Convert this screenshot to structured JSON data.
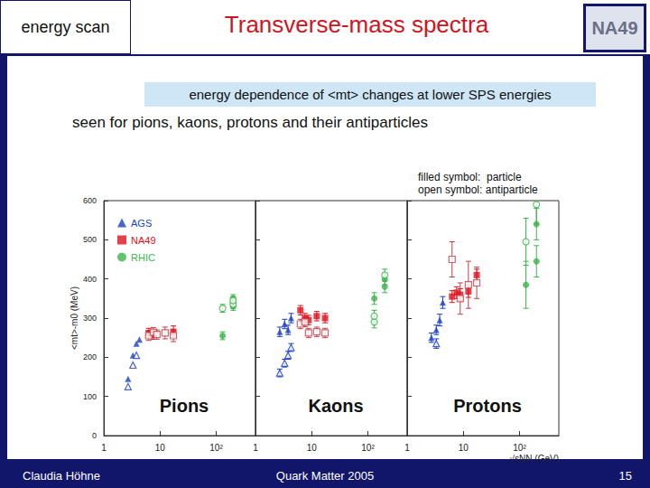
{
  "slide": {
    "header_left": "energy scan",
    "title": "Transverse-mass spectra",
    "logo": "NA49",
    "highlight": "energy dependence of <mt> changes at lower SPS energies",
    "subtitle": "seen for pions, kaons, protons and their antiparticles",
    "notes": [
      "filled symbol:  particle",
      "open symbol: antiparticle"
    ],
    "footer": {
      "author": "Claudia Höhne",
      "event": "Quark Matter 2005",
      "page": 15
    }
  },
  "chart_data": [
    {
      "type": "scatter",
      "title": "Pions",
      "ylabel": "<mt>-m0 (MeV)",
      "log": "x",
      "xlim": [
        1,
        500
      ],
      "xticks": [
        1,
        10,
        {
          "value": 100,
          "label": "10²"
        }
      ],
      "ylim": [
        0,
        600
      ],
      "yticks": [
        0,
        100,
        200,
        300,
        400,
        500,
        600
      ],
      "grid": false,
      "legend": "upper left",
      "series": [
        {
          "name": "AGS",
          "color": "#1a3fc4",
          "marker": "triangle",
          "x": [
            2.7,
            3.3,
            3.8,
            4.3
          ],
          "values": [
            145,
            205,
            235,
            245
          ]
        },
        {
          "name": "AGS",
          "color": "#1a3fc4",
          "marker": "open-triangle",
          "x": [
            2.7,
            3.3,
            3.8
          ],
          "values": [
            125,
            180,
            205
          ]
        },
        {
          "name": "NA49",
          "color": "#e0101a",
          "marker": "square",
          "x": [
            6.3,
            7.6,
            17.3
          ],
          "values": [
            262,
            258,
            265
          ],
          "errors": [
            12,
            12,
            15
          ]
        },
        {
          "name": "NA49",
          "color": "#c0404a",
          "marker": "open-square",
          "x": [
            6.3,
            7.6,
            8.8,
            12.3,
            17.3
          ],
          "values": [
            255,
            264,
            258,
            262,
            255
          ],
          "errors": [
            12,
            12,
            12,
            15,
            15
          ]
        },
        {
          "name": "RHIC",
          "color": "#3cb44b",
          "marker": "circle",
          "x": [
            130,
            200,
            200,
            200
          ],
          "values": [
            255,
            330,
            340,
            350
          ],
          "errors": [
            10,
            10,
            10,
            10
          ]
        },
        {
          "name": "RHIC",
          "color": "#3cb44b",
          "marker": "open-circle",
          "x": [
            130,
            200,
            200
          ],
          "values": [
            325,
            335,
            345
          ],
          "errors": [
            10,
            10,
            10
          ]
        }
      ]
    },
    {
      "type": "scatter",
      "title": "Kaons",
      "log": "x",
      "tick_labels": "x",
      "xlim": [
        1,
        500
      ],
      "xticks": [
        1,
        10,
        {
          "value": 100,
          "label": "10²"
        }
      ],
      "ylim": [
        0,
        600
      ],
      "yticks": [
        0,
        100,
        200,
        300,
        400,
        500,
        600
      ],
      "grid": false,
      "series": [
        {
          "name": "AGS",
          "color": "#1a3fc4",
          "marker": "triangle",
          "x": [
            2.7,
            3.3,
            3.8,
            4.3
          ],
          "values": [
            265,
            285,
            270,
            300
          ],
          "errors": [
            12,
            12,
            12,
            12
          ]
        },
        {
          "name": "AGS",
          "color": "#1a3fc4",
          "marker": "open-triangle",
          "x": [
            2.7,
            3.3,
            3.8,
            4.3
          ],
          "values": [
            160,
            185,
            205,
            225
          ],
          "errors": [
            10,
            10,
            10,
            10
          ]
        },
        {
          "name": "NA49",
          "color": "#e0101a",
          "marker": "square",
          "x": [
            6.3,
            7.6,
            8.8,
            12.3,
            17.3
          ],
          "values": [
            320,
            300,
            295,
            305,
            300
          ],
          "errors": [
            12,
            12,
            12,
            12,
            12
          ]
        },
        {
          "name": "NA49",
          "color": "#c0404a",
          "marker": "open-square",
          "x": [
            6.3,
            7.6,
            8.8,
            12.3,
            17.3
          ],
          "values": [
            285,
            290,
            262,
            265,
            262
          ],
          "errors": [
            12,
            12,
            12,
            12,
            12
          ]
        },
        {
          "name": "RHIC",
          "color": "#3cb44b",
          "marker": "circle",
          "x": [
            130,
            200,
            200
          ],
          "values": [
            350,
            380,
            400
          ],
          "errors": [
            15,
            15,
            15
          ]
        },
        {
          "name": "RHIC",
          "color": "#3cb44b",
          "marker": "open-circle",
          "x": [
            130,
            130,
            200
          ],
          "values": [
            290,
            305,
            410
          ],
          "errors": [
            15,
            15,
            15
          ]
        }
      ]
    },
    {
      "type": "scatter",
      "title": "Protons",
      "xlabel": "√sNN (GeV)",
      "log": "x",
      "tick_labels": "x",
      "xlim": [
        1,
        500
      ],
      "xticks": [
        1,
        10,
        {
          "value": 100,
          "label": "10²"
        }
      ],
      "ylim": [
        0,
        600
      ],
      "yticks": [
        0,
        100,
        200,
        300,
        400,
        500,
        600
      ],
      "grid": false,
      "series": [
        {
          "name": "AGS",
          "color": "#1a3fc4",
          "marker": "triangle",
          "x": [
            2.7,
            3.3,
            3.8,
            4.3
          ],
          "values": [
            250,
            270,
            295,
            340
          ],
          "errors": [
            12,
            12,
            15,
            15
          ]
        },
        {
          "name": "AGS",
          "color": "#1a3fc4",
          "marker": "open-triangle",
          "x": [
            3.3
          ],
          "values": [
            235
          ],
          "errors": [
            12
          ]
        },
        {
          "name": "NA49",
          "color": "#e0101a",
          "marker": "square",
          "x": [
            6.3,
            7.6,
            8.8,
            12.3,
            17.3
          ],
          "values": [
            355,
            365,
            360,
            368,
            410
          ],
          "errors": [
            15,
            15,
            15,
            15,
            15
          ]
        },
        {
          "name": "NA49",
          "color": "#c0404a",
          "marker": "open-square",
          "x": [
            6.3,
            8.8,
            12.3,
            17.3
          ],
          "values": [
            450,
            350,
            385,
            390
          ],
          "errors": [
            45,
            40,
            60,
            40
          ]
        },
        {
          "name": "RHIC",
          "color": "#3cb44b",
          "marker": "circle",
          "x": [
            130,
            200,
            200
          ],
          "values": [
            385,
            540,
            445
          ],
          "errors": [
            60,
            40,
            40
          ]
        },
        {
          "name": "RHIC",
          "color": "#3cb44b",
          "marker": "open-circle",
          "x": [
            130,
            200
          ],
          "values": [
            495,
            590
          ],
          "errors": [
            60,
            50
          ]
        }
      ]
    }
  ]
}
